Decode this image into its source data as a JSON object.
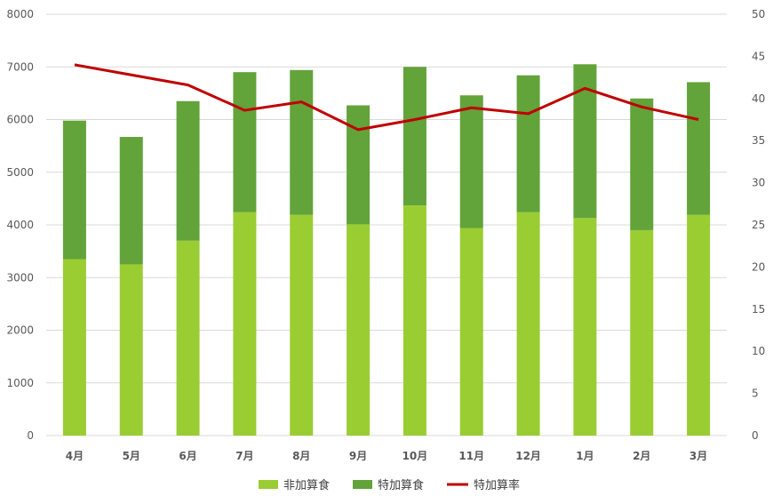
{
  "chart_data": {
    "type": "bar",
    "stacked": true,
    "categories": [
      "4月",
      "5月",
      "6月",
      "7月",
      "8月",
      "9月",
      "10月",
      "11月",
      "12月",
      "1月",
      "2月",
      "3月"
    ],
    "series": [
      {
        "name": "非加算食",
        "type": "bar",
        "axis": "left",
        "color": "#9acd32",
        "values": [
          3350,
          3250,
          3700,
          4240,
          4190,
          4010,
          4370,
          3940,
          4240,
          4130,
          3900,
          4190
        ]
      },
      {
        "name": "特加算食",
        "type": "bar",
        "axis": "left",
        "color": "#62a33a",
        "values": [
          2630,
          2420,
          2650,
          2660,
          2750,
          2260,
          2630,
          2520,
          2600,
          2920,
          2500,
          2520
        ]
      },
      {
        "name": "特加算率",
        "type": "line",
        "axis": "right",
        "color": "#c00000",
        "values": [
          44.0,
          42.8,
          41.6,
          38.6,
          39.6,
          36.3,
          37.5,
          38.9,
          38.2,
          41.2,
          39.0,
          37.5
        ]
      }
    ],
    "y_left": {
      "min": 0,
      "max": 8000,
      "step": 1000,
      "ticks": [
        "0",
        "1000",
        "2000",
        "3000",
        "4000",
        "5000",
        "6000",
        "7000",
        "8000"
      ]
    },
    "y_right": {
      "min": 0,
      "max": 50,
      "step": 5,
      "ticks": [
        "0",
        "5",
        "10",
        "15",
        "20",
        "25",
        "30",
        "35",
        "40",
        "45",
        "50"
      ]
    },
    "grid": true,
    "legend_position": "bottom"
  }
}
